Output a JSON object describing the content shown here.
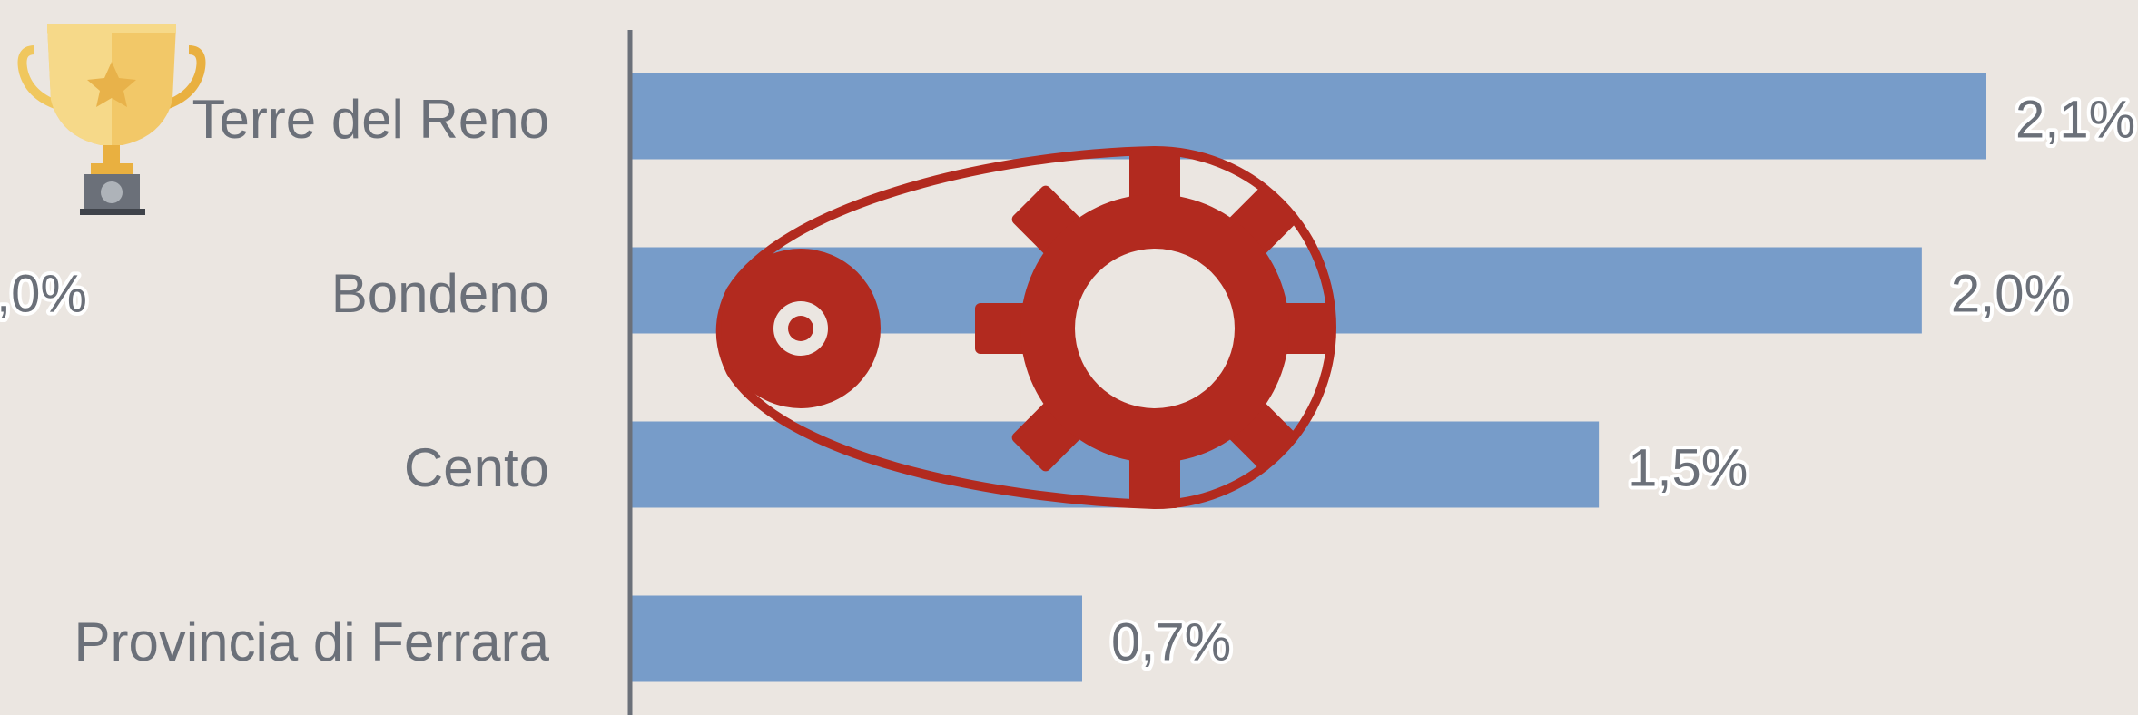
{
  "chart_data": {
    "type": "bar",
    "orientation": "horizontal",
    "categories": [
      "Terre del Reno",
      "Bondeno",
      "Cento",
      "Provincia di Ferrara"
    ],
    "values": [
      2.1,
      2.0,
      1.5,
      0.7
    ],
    "value_labels": [
      "2,1%",
      "2,0%",
      "1,5%",
      "0,7%"
    ],
    "color": "#779cc9",
    "annotations": [
      ",0%"
    ]
  }
}
